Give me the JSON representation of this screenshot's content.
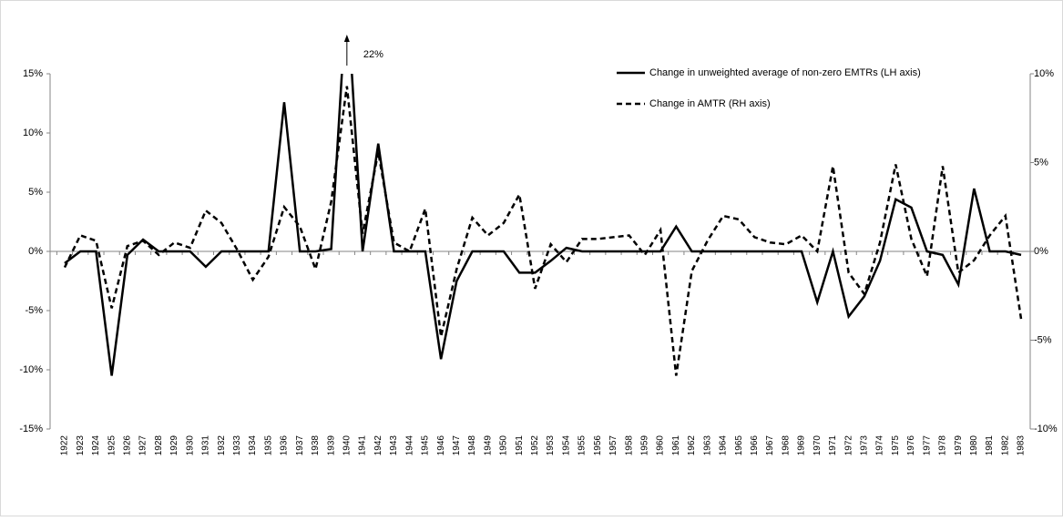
{
  "chart_data": {
    "type": "line",
    "annotation": "22%",
    "categories": [
      "1922",
      "1923",
      "1924",
      "1925",
      "1926",
      "1927",
      "1928",
      "1929",
      "1930",
      "1931",
      "1932",
      "1933",
      "1934",
      "1935",
      "1936",
      "1937",
      "1938",
      "1939",
      "1940",
      "1941",
      "1942",
      "1943",
      "1944",
      "1945",
      "1946",
      "1947",
      "1948",
      "1949",
      "1950",
      "1951",
      "1952",
      "1953",
      "1954",
      "1955",
      "1956",
      "1957",
      "1958",
      "1959",
      "1960",
      "1961",
      "1962",
      "1963",
      "1964",
      "1965",
      "1966",
      "1967",
      "1968",
      "1969",
      "1970",
      "1971",
      "1972",
      "1973",
      "1974",
      "1975",
      "1976",
      "1977",
      "1978",
      "1979",
      "1980",
      "1981",
      "1982",
      "1983"
    ],
    "series": [
      {
        "name": "Change in unweighted average of non-zero  EMTRs (LH axis)",
        "color": "#000000",
        "dash": "solid",
        "values": [
          -1.0,
          0,
          0,
          -10.5,
          -0.3,
          1.0,
          0,
          0,
          0,
          -1.3,
          0,
          0,
          0,
          0,
          12.6,
          0,
          0,
          0.2,
          22,
          0,
          9.1,
          0,
          0,
          0,
          -9.1,
          -2.5,
          0,
          0,
          0,
          -1.8,
          -1.8,
          -0.8,
          0.3,
          0,
          0,
          0,
          0,
          0,
          0,
          2.1,
          0,
          0,
          0,
          0,
          0,
          0,
          0,
          0,
          -4.3,
          0,
          -5.5,
          -3.8,
          -0.8,
          4.4,
          3.7,
          0,
          -0.3,
          -2.8,
          5.3,
          0,
          0,
          -0.3
        ]
      },
      {
        "name": "Change in AMTR (RH axis)",
        "color": "#000000",
        "dash": "dashed",
        "axis": "y2",
        "values": [
          -0.9,
          0.9,
          0.6,
          -3.2,
          0.3,
          0.6,
          -0.2,
          0.5,
          0.2,
          2.3,
          1.6,
          0.1,
          -1.6,
          -0.3,
          2.5,
          1.4,
          -1.0,
          2.8,
          9.3,
          1.0,
          5.6,
          0.5,
          0,
          2.4,
          -4.8,
          -1.0,
          1.9,
          0.9,
          1.6,
          3.2,
          -2.1,
          0.4,
          -0.6,
          0.7,
          0.7,
          0.8,
          0.9,
          -0.2,
          1.2,
          -7.0,
          -1.1,
          0.6,
          2.0,
          1.8,
          0.8,
          0.5,
          0.4,
          0.9,
          0,
          4.8,
          -1.2,
          -2.4,
          0.5,
          4.9,
          0.7,
          -1.4,
          4.8,
          -1.2,
          -0.5,
          0.9,
          2.0,
          -3.8
        ]
      }
    ],
    "ylim": [
      -15,
      15
    ],
    "yticks": [
      {
        "value": -15,
        "label": "-15%"
      },
      {
        "value": -10,
        "label": "-10%"
      },
      {
        "value": -5,
        "label": "-5%"
      },
      {
        "value": 0,
        "label": "0%"
      },
      {
        "value": 5,
        "label": "5%"
      },
      {
        "value": 10,
        "label": "10%"
      },
      {
        "value": 15,
        "label": "15%"
      }
    ],
    "y2lim": [
      -10,
      10
    ],
    "y2ticks": [
      {
        "value": -10,
        "label": "-10%"
      },
      {
        "value": -5,
        "label": "-5%"
      },
      {
        "value": 0,
        "label": "0%"
      },
      {
        "value": 5,
        "label": "5%"
      },
      {
        "value": 10,
        "label": "10%"
      }
    ],
    "grid": false,
    "legend": "top-right"
  }
}
